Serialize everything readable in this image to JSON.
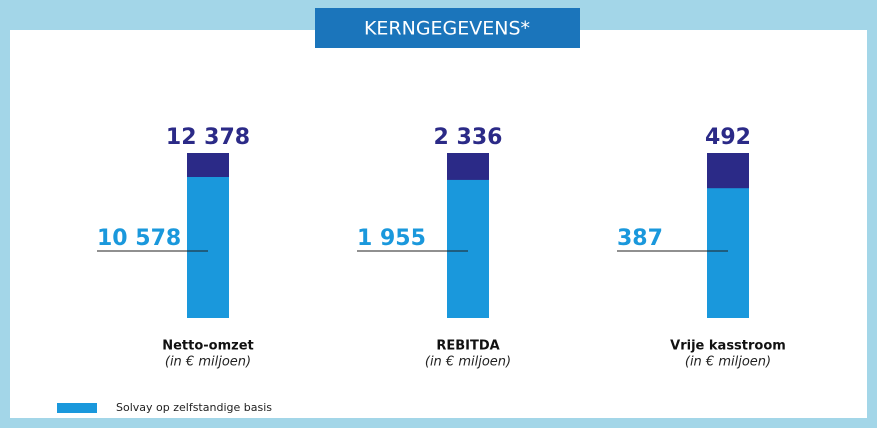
{
  "title": "KERNGEGEVENS*",
  "chart_data": [
    {
      "type": "bar",
      "title": "Netto-omzet",
      "subtitle": "(in € miljoen)",
      "series": [
        {
          "color": "#2b2a87",
          "values": [
            12378
          ],
          "value_labels": [
            "12 378"
          ]
        },
        {
          "name": "Solvay op zelfstandige basis",
          "color": "#1a98dc",
          "values": [
            10578
          ],
          "value_labels": [
            "10 578"
          ]
        }
      ]
    },
    {
      "type": "bar",
      "title": "REBITDA",
      "subtitle": "(in € miljoen)",
      "series": [
        {
          "color": "#2b2a87",
          "values": [
            2336
          ],
          "value_labels": [
            "2 336"
          ]
        },
        {
          "color": "#1a98dc",
          "values": [
            1955
          ],
          "value_labels": [
            "1 955"
          ]
        }
      ]
    },
    {
      "type": "bar",
      "title": "Vrije kasstroom",
      "subtitle": "(in € miljoen)",
      "series": [
        {
          "color": "#2b2a87",
          "values": [
            492
          ]
        },
        {
          "color": "#1a98dc",
          "values": [
            387
          ]
        }
      ]
    }
  ]
}
